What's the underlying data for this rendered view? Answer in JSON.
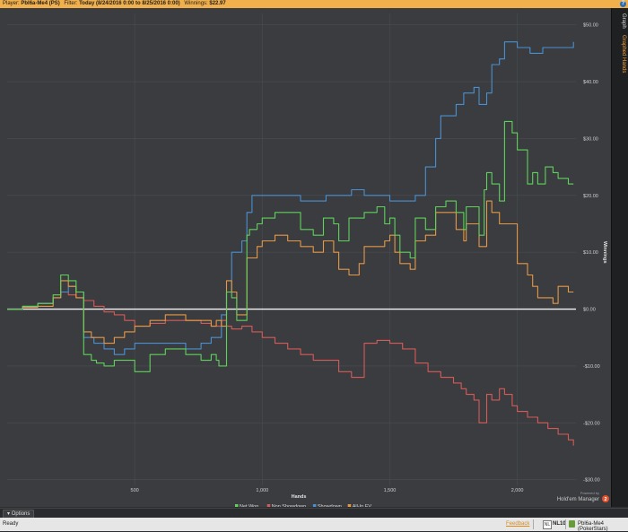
{
  "titlebar": {
    "player_label": "Player:",
    "player_name": "Pbl6a-Me4 (PS)",
    "filter_label": "Filter:",
    "filter_value": "Today (8/24/2016 0:00 to 8/25/2016 0:00)",
    "winnings_label": "Winnings:",
    "winnings_value": "$22.97",
    "help_glyph": "?"
  },
  "side_tabs": {
    "graph": "Graph",
    "graphed_hands": "Graphed Hands"
  },
  "bottom": {
    "options_label": "Options",
    "options_glyph": "▾"
  },
  "statusbar": {
    "ready": "Ready",
    "feedback": "Feedback",
    "limit": "NL10",
    "player": "Pbl6a-Me4 (PokerStars)",
    "nl_badge": "NL"
  },
  "watermark": {
    "line1": "Powered by",
    "line2": "Hold'em Manager",
    "badge": "2"
  },
  "chart_data": {
    "type": "line",
    "xlabel": "Hands",
    "ylabel": "Winnings",
    "xlim": [
      0,
      2230
    ],
    "ylim": [
      -31,
      52
    ],
    "x_ticks": [
      500,
      1000,
      1500,
      2000
    ],
    "x_tick_labels": [
      "500",
      "1,000",
      "1,500",
      "2,000"
    ],
    "y_ticks": [
      50,
      40,
      30,
      20,
      10,
      0,
      -10,
      -20,
      -30
    ],
    "y_tick_labels": [
      "$50.00",
      "$40.00",
      "$30.00",
      "$20.00",
      "$10.00",
      "$0.00",
      "-$10.00",
      "-$20.00",
      "-$30.00"
    ],
    "grid": true,
    "legend_position": "bottom-center",
    "series": [
      {
        "name": "Net Won",
        "color": "#5fd25a",
        "x": [
          0,
          60,
          120,
          180,
          210,
          240,
          270,
          300,
          330,
          350,
          380,
          420,
          460,
          500,
          560,
          620,
          700,
          760,
          800,
          820,
          830,
          850,
          860,
          880,
          900,
          940,
          950,
          980,
          1000,
          1050,
          1100,
          1150,
          1200,
          1240,
          1280,
          1300,
          1340,
          1380,
          1400,
          1450,
          1480,
          1500,
          1520,
          1540,
          1580,
          1600,
          1640,
          1680,
          1720,
          1760,
          1790,
          1800,
          1830,
          1850,
          1870,
          1880,
          1900,
          1930,
          1950,
          1980,
          2000,
          2040,
          2060,
          2080,
          2110,
          2140,
          2160,
          2180,
          2200,
          2220
        ],
        "y": [
          0,
          0.5,
          1,
          2.5,
          6,
          5,
          3,
          -8,
          -9,
          -9.5,
          -10,
          -9,
          -9,
          -11,
          -8,
          -7,
          -8,
          -9,
          -8,
          -9,
          -10,
          -10,
          3,
          2,
          -2,
          13,
          14,
          15,
          16,
          17,
          17,
          14,
          13,
          16,
          15,
          12,
          16,
          16,
          17,
          18,
          15,
          16,
          13,
          10,
          9,
          16,
          14,
          18,
          19,
          17,
          14,
          18,
          18,
          13,
          21,
          24,
          22,
          19,
          33,
          31,
          28,
          22,
          24,
          22,
          25,
          24,
          23,
          23,
          22,
          22
        ]
      },
      {
        "name": "Non Showdown",
        "color": "#d65a58",
        "x": [
          0,
          60,
          120,
          180,
          210,
          240,
          270,
          300,
          340,
          380,
          420,
          460,
          500,
          560,
          620,
          700,
          760,
          800,
          840,
          860,
          880,
          920,
          960,
          1000,
          1050,
          1100,
          1150,
          1200,
          1250,
          1300,
          1350,
          1380,
          1400,
          1450,
          1500,
          1550,
          1600,
          1650,
          1700,
          1750,
          1780,
          1800,
          1830,
          1850,
          1880,
          1900,
          1930,
          1950,
          1980,
          2000,
          2040,
          2080,
          2120,
          2160,
          2200,
          2220
        ],
        "y": [
          0,
          0.5,
          1,
          2,
          3,
          2.5,
          2,
          1.5,
          0.5,
          -0.5,
          -1,
          -2,
          -3,
          -2.5,
          -2,
          -2,
          -2.5,
          -3,
          -2,
          -3,
          -3.5,
          -3,
          -4,
          -5,
          -6,
          -7,
          -8,
          -9,
          -9,
          -11,
          -12,
          -12,
          -6,
          -5.5,
          -6,
          -7,
          -9.5,
          -11,
          -12,
          -13,
          -14,
          -15,
          -16,
          -20,
          -15,
          -16,
          -14,
          -15,
          -17,
          -18,
          -19,
          -20,
          -21,
          -22,
          -23,
          -24
        ]
      },
      {
        "name": "Showdown",
        "color": "#4a90d0",
        "x": [
          0,
          60,
          120,
          180,
          210,
          240,
          270,
          300,
          340,
          380,
          420,
          460,
          500,
          560,
          620,
          700,
          760,
          800,
          840,
          860,
          880,
          920,
          940,
          960,
          1000,
          1050,
          1100,
          1150,
          1200,
          1250,
          1300,
          1350,
          1400,
          1450,
          1500,
          1550,
          1600,
          1640,
          1680,
          1700,
          1730,
          1760,
          1790,
          1830,
          1850,
          1880,
          1900,
          1930,
          1950,
          2000,
          2050,
          2100,
          2150,
          2200,
          2220
        ],
        "y": [
          0,
          0.5,
          1,
          2,
          3,
          4,
          3,
          -5,
          -6,
          -7,
          -8,
          -7,
          -6,
          -6,
          -6,
          -7,
          -6,
          -5,
          -1,
          3,
          10,
          12,
          17,
          20,
          20,
          20,
          20,
          19,
          19,
          20,
          20,
          21,
          20,
          20,
          19,
          19,
          20,
          25,
          30,
          34,
          34,
          36,
          38,
          39,
          36,
          38,
          43,
          44,
          47,
          46,
          45,
          46,
          46,
          46,
          47
        ]
      },
      {
        "name": "All-In EV",
        "color": "#e69845",
        "x": [
          0,
          60,
          120,
          180,
          210,
          240,
          270,
          300,
          330,
          380,
          420,
          460,
          500,
          560,
          620,
          700,
          760,
          800,
          820,
          840,
          860,
          880,
          900,
          940,
          980,
          1000,
          1050,
          1100,
          1150,
          1200,
          1240,
          1280,
          1300,
          1340,
          1380,
          1400,
          1450,
          1480,
          1500,
          1520,
          1540,
          1580,
          1600,
          1640,
          1680,
          1720,
          1760,
          1790,
          1800,
          1830,
          1850,
          1880,
          1900,
          1930,
          1950,
          2000,
          2040,
          2060,
          2080,
          2110,
          2140,
          2160,
          2180,
          2200,
          2220
        ],
        "y": [
          0,
          0.3,
          0.5,
          2,
          5,
          4,
          2,
          -4,
          -5,
          -6,
          -5,
          -4,
          -3,
          -2,
          -1,
          -2,
          -2,
          -3,
          -2,
          -3,
          5,
          3,
          -1,
          9,
          11,
          12,
          13,
          12,
          11,
          10,
          12,
          10,
          7,
          6,
          8,
          11,
          11,
          12,
          13,
          10,
          8,
          7,
          12,
          13,
          17,
          17,
          14,
          12,
          15,
          15,
          11,
          19,
          17,
          15,
          15,
          8,
          6,
          4,
          2,
          2,
          1,
          4,
          4,
          3,
          3
        ]
      }
    ]
  }
}
